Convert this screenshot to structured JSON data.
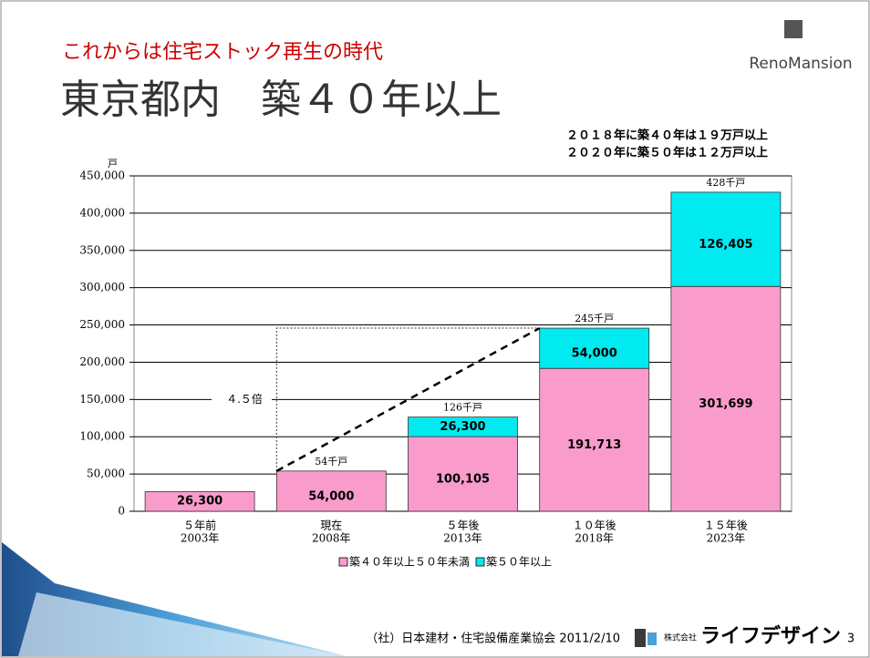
{
  "header": {
    "subtitle": "これからは住宅ストック再生の時代",
    "title": "東京都内　築４０年以上",
    "logo": "RenoMansion"
  },
  "notes": [
    "２０１８年に築４０年は１９万戸以上",
    "２０２０年に築５０年は１２万戸以上"
  ],
  "chart_data": {
    "type": "stacked-bar",
    "y_unit": "戸",
    "categories": [
      [
        "５年前",
        "2003年"
      ],
      [
        "現在",
        "2008年"
      ],
      [
        "５年後",
        "2013年"
      ],
      [
        "１０年後",
        "2018年"
      ],
      [
        "１５年後",
        "2023年"
      ]
    ],
    "series": [
      {
        "name": "築４０年以上５０年未満",
        "color": "#f99ccc",
        "values": [
          26300,
          54000,
          100105,
          191713,
          301699
        ],
        "value_labels": [
          "26,300",
          "54,000",
          "100,105",
          "191,713",
          "301,699"
        ]
      },
      {
        "name": "築５０年以上",
        "color": "#00eaf0",
        "values": [
          null,
          null,
          26300,
          54000,
          126405
        ],
        "value_labels": [
          null,
          null,
          "26,300",
          "54,000",
          "126,405"
        ]
      }
    ],
    "total_labels": [
      null,
      "54千戸",
      "126千戸",
      "245千戸",
      "428千戸"
    ],
    "annotation": "４.５倍",
    "ylim": [
      0,
      450000
    ],
    "yticks": [
      0,
      {
        "value": 50000,
        "label": "50,000"
      },
      {
        "value": 100000,
        "label": "100,000"
      },
      {
        "value": 150000,
        "label": "150,000"
      },
      {
        "value": 200000,
        "label": "200,000"
      },
      {
        "value": 250000,
        "label": "250,000"
      },
      {
        "value": 300000,
        "label": "300,000"
      },
      {
        "value": 350000,
        "label": "350,000"
      },
      {
        "value": 400000,
        "label": "400,000"
      },
      {
        "value": 450000,
        "label": "450,000"
      }
    ],
    "grid": true,
    "legend": "bottom"
  },
  "footer": {
    "source": "（社）日本建材・住宅設備産業協会 2011/2/10",
    "company_prefix": "株式会社",
    "company": "ライフデザイン",
    "page": "3"
  }
}
